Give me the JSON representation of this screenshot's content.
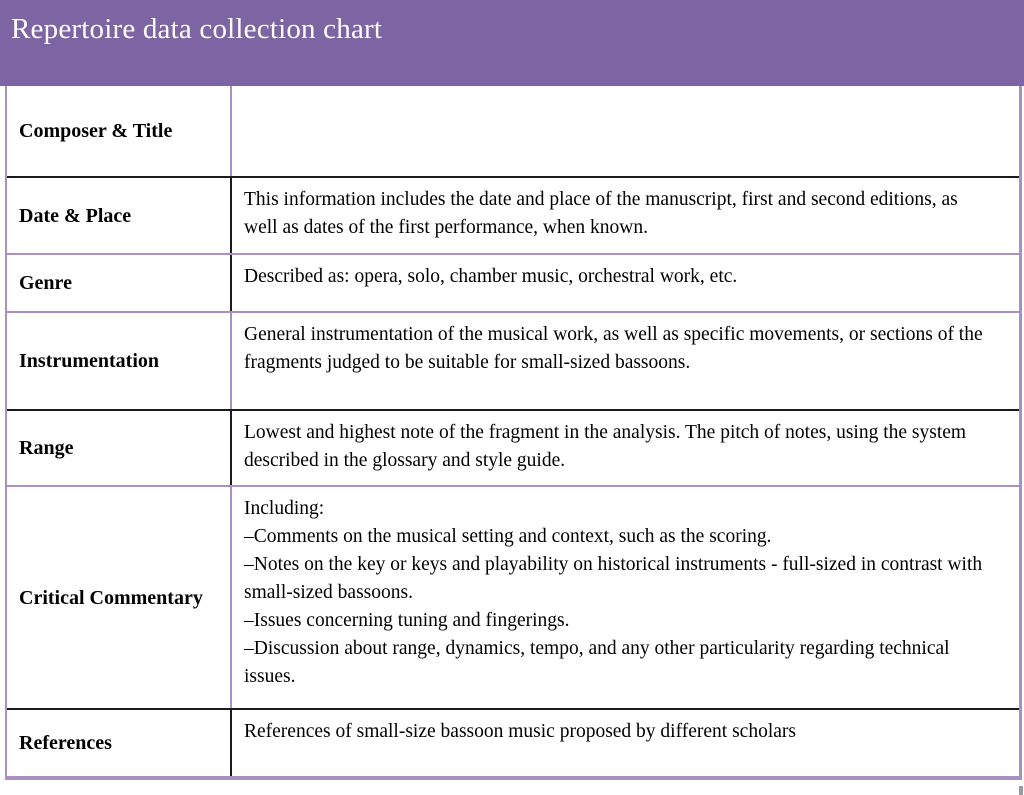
{
  "banner": {
    "title": "Repertoire data collection chart"
  },
  "table": {
    "rows": [
      {
        "label": "Composer & Title",
        "description": ""
      },
      {
        "label": "Date & Place",
        "description": "This information includes the date and place of the manuscript, first and second editions, as well as dates of the first performance, when known."
      },
      {
        "label": "Genre",
        "description": "Described as: opera, solo, chamber music, orchestral work, etc."
      },
      {
        "label": "Instrumentation",
        "description": "General instrumentation of the musical work, as well as specific movements, or sections of the fragments judged to be suitable for small-sized bassoons."
      },
      {
        "label": "Range",
        "description": "Lowest and highest note of the fragment in the analysis. The pitch of notes, using the system described in the glossary and style guide."
      },
      {
        "label": "Critical Commentary",
        "lines": [
          "Including:",
          "–Comments on the musical setting and context, such as the scoring.",
          "–Notes on the key or keys and playability on historical instruments - full-sized in contrast with small-sized bassoons.",
          "–Issues concerning tuning and fingerings.",
          "–Discussion about range, dynamics, tempo, and any other particularity regarding technical issues."
        ]
      },
      {
        "label": "References",
        "description": "References of small-size bassoon music proposed by different scholars"
      }
    ]
  },
  "colors": {
    "banner_purple": "#7d64a3",
    "border_purple": "#a890c3",
    "border_black": "#1b1b1b",
    "title_text": "#ffffff",
    "body_text": "#000000"
  }
}
